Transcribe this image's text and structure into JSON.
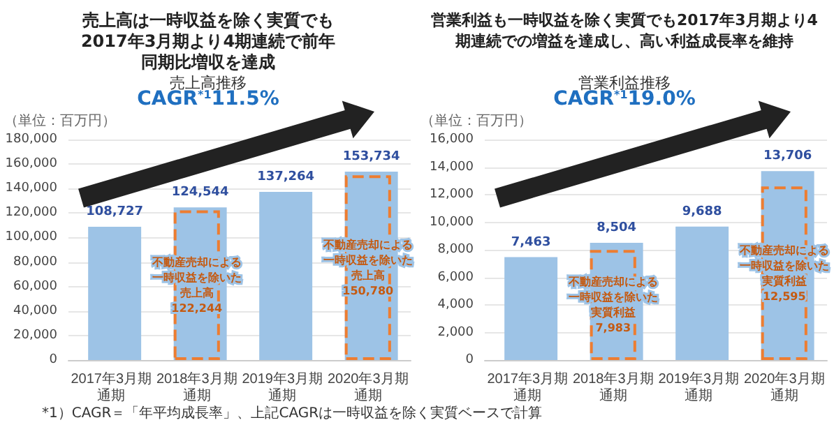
{
  "chart_data": [
    {
      "type": "bar",
      "title": "売上高は一時収益を除く実質でも2017年3月期より4期連続で前年同期比増収を達成",
      "subtitle": "売上高推移",
      "ylabel": "（単位：百万円）",
      "annotations": [
        "CAGR$^{*1}$11.5%",
        "*1）CAGR＝「年平均成長率」、上記CAGRは一時収益を除く実質ベースで計算"
      ],
      "categories": [
        "2017年3月期通期",
        "2018年3月期通期",
        "2019年3月期通期",
        "2020年3月期通期"
      ],
      "series": [
        {
          "color": "#9dc3e6",
          "values": [
            108727,
            124544,
            137264,
            153734
          ],
          "value_labels": [
            "108,727",
            "124,544",
            "137,264",
            "153,734"
          ]
        },
        {
          "name": "不動産売却による一時収益を除いた売上高",
          "color": "#ed7d31",
          "line_style": "dashed",
          "values": [
            null,
            122244,
            null,
            150780
          ],
          "value_labels": [
            null,
            "122,244",
            null,
            "150,780"
          ]
        }
      ],
      "ylim": [
        0,
        180000
      ],
      "yticks": [
        {
          "value": 0,
          "label": "0"
        },
        {
          "value": 20000,
          "label": "20,000"
        },
        {
          "value": 40000,
          "label": "40,000"
        },
        {
          "value": 60000,
          "label": "60,000"
        },
        {
          "value": 80000,
          "label": "80,000"
        },
        {
          "value": 100000,
          "label": "100,000"
        },
        {
          "value": 120000,
          "label": "120,000"
        },
        {
          "value": 140000,
          "label": "140,000"
        },
        {
          "value": 160000,
          "label": "160,000"
        },
        {
          "value": 180000,
          "label": "180,000"
        }
      ],
      "grid": "y",
      "legend": false
    },
    {
      "type": "bar",
      "title": "営業利益も一時収益を除く実質でも2017年3月期より4期連続での増益を達成し、高い利益成長率を維持",
      "subtitle": "営業利益推移",
      "ylabel": "（単位：百万円）",
      "annotations": [
        "CAGR$^{*1}$19.0%"
      ],
      "categories": [
        "2017年3月期通期",
        "2018年3月期通期",
        "2019年3月期通期",
        "2020年3月期通期"
      ],
      "series": [
        {
          "color": "#9dc3e6",
          "values": [
            7463,
            8504,
            9688,
            13706
          ],
          "value_labels": [
            "7,463",
            "8,504",
            "9,688",
            "13,706"
          ]
        },
        {
          "name": "不動産売却による一時収益を除いた実質利益",
          "color": "#ed7d31",
          "line_style": "dashed",
          "values": [
            null,
            7983,
            null,
            12595
          ],
          "value_labels": [
            null,
            "7,983",
            null,
            "12,595"
          ]
        }
      ],
      "ylim": [
        0,
        16000
      ],
      "yticks": [
        {
          "value": 0,
          "label": "0"
        },
        {
          "value": 2000,
          "label": "2,000"
        },
        {
          "value": 4000,
          "label": "4,000"
        },
        {
          "value": 6000,
          "label": "6,000"
        },
        {
          "value": 8000,
          "label": "8,000"
        },
        {
          "value": 10000,
          "label": "10,000"
        },
        {
          "value": 12000,
          "label": "12,000"
        },
        {
          "value": 14000,
          "label": "14,000"
        },
        {
          "value": 16000,
          "label": "16,000"
        }
      ],
      "grid": "y",
      "legend": false
    }
  ]
}
